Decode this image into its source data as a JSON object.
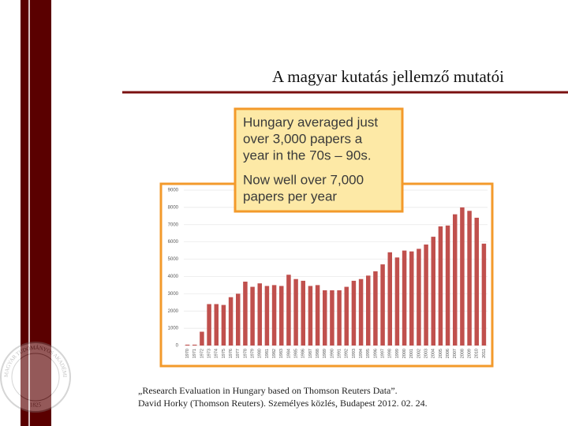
{
  "slide_title": "A magyar kutatás jellemző mutatói",
  "callout": [
    "Hungary averaged just",
    "over 3,000 papers a",
    "year in the 70s – 90s.",
    "Now well over 7,000",
    "papers per year"
  ],
  "caption": [
    "„Research Evaluation in Hungary based on Thomson Reuters Data”.",
    "David Horky (Thomson Reuters). Személyes közlés, Budapest 2012. 02. 24."
  ],
  "seal": {
    "text": "MAGYAR TUDOMÁNYOS AKADÉMIA",
    "year": "1825"
  },
  "chart_data": {
    "type": "bar",
    "color": "#c0504d",
    "categories": [
      "1970",
      "1971",
      "1972",
      "1973",
      "1974",
      "1975",
      "1976",
      "1977",
      "1978",
      "1979",
      "1980",
      "1981",
      "1982",
      "1983",
      "1984",
      "1985",
      "1986",
      "1987",
      "1988",
      "1989",
      "1990",
      "1991",
      "1992",
      "1993",
      "1994",
      "1995",
      "1996",
      "1997",
      "1998",
      "1999",
      "2000",
      "2001",
      "2002",
      "2003",
      "2004",
      "2005",
      "2006",
      "2007",
      "2008",
      "2009",
      "2010",
      "2011"
    ],
    "values": [
      50,
      50,
      800,
      2400,
      2400,
      2350,
      2800,
      3000,
      3700,
      3400,
      3600,
      3450,
      3500,
      3450,
      4100,
      3850,
      3750,
      3450,
      3500,
      3200,
      3200,
      3200,
      3400,
      3750,
      3850,
      4050,
      4300,
      4700,
      5400,
      5100,
      5500,
      5450,
      5600,
      5850,
      6300,
      6900,
      6950,
      7600,
      8000,
      7800,
      7400,
      5900
    ],
    "ylim": [
      0,
      9000
    ],
    "yticks": [
      0,
      1000,
      2000,
      3000,
      4000,
      5000,
      6000,
      7000,
      8000,
      9000
    ],
    "grid": true
  }
}
